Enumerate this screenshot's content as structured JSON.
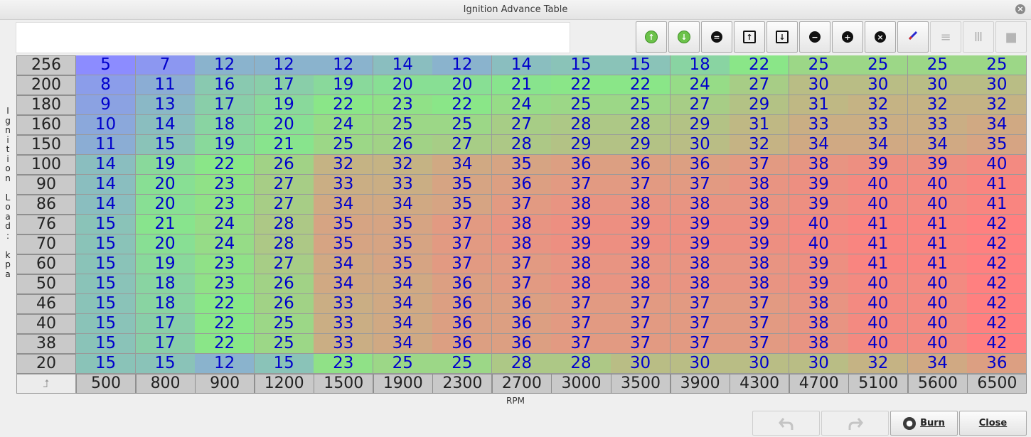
{
  "window": {
    "title": "Ignition Advance Table"
  },
  "toolbar": {
    "buttons": [
      {
        "name": "increase-green-icon",
        "glyph": "↑",
        "kind": "green",
        "enabled": true
      },
      {
        "name": "decrease-green-icon",
        "glyph": "↓",
        "kind": "green",
        "enabled": true
      },
      {
        "name": "set-equal-icon",
        "glyph": "=",
        "kind": "black",
        "enabled": true
      },
      {
        "name": "arrow-up-icon",
        "glyph": "↑",
        "kind": "arrow",
        "enabled": true
      },
      {
        "name": "arrow-down-icon",
        "glyph": "↓",
        "kind": "arrow",
        "enabled": true
      },
      {
        "name": "minus-icon",
        "glyph": "−",
        "kind": "black",
        "enabled": true
      },
      {
        "name": "plus-icon",
        "glyph": "+",
        "kind": "black",
        "enabled": true
      },
      {
        "name": "multiply-icon",
        "glyph": "×",
        "kind": "black",
        "enabled": true
      },
      {
        "name": "pen-icon",
        "glyph": "/",
        "kind": "pen",
        "enabled": true
      },
      {
        "name": "horizontal-smooth-icon",
        "glyph": "≡",
        "kind": "grey",
        "enabled": false
      },
      {
        "name": "vertical-smooth-icon",
        "glyph": "Ⅲ",
        "kind": "grey",
        "enabled": false
      },
      {
        "name": "block-fill-icon",
        "glyph": "■",
        "kind": "grey",
        "enabled": false
      }
    ]
  },
  "table": {
    "y_axis_label": "Ignition Load: kpa",
    "x_axis_label": "RPM",
    "corner_icon": "axis-swap-icon",
    "corner_glyph": "⮥",
    "rpm": [
      "500",
      "800",
      "900",
      "1200",
      "1500",
      "1900",
      "2300",
      "2700",
      "3000",
      "3500",
      "3900",
      "4300",
      "4700",
      "5100",
      "5600",
      "6500"
    ],
    "load": [
      "256",
      "200",
      "180",
      "160",
      "150",
      "100",
      "90",
      "86",
      "76",
      "70",
      "60",
      "50",
      "46",
      "40",
      "38",
      "20"
    ],
    "values": [
      [
        5,
        7,
        12,
        12,
        12,
        14,
        12,
        14,
        15,
        15,
        18,
        22,
        25,
        25,
        25,
        25
      ],
      [
        8,
        11,
        16,
        17,
        19,
        20,
        20,
        21,
        22,
        22,
        24,
        27,
        30,
        30,
        30,
        30
      ],
      [
        9,
        13,
        17,
        19,
        22,
        23,
        22,
        24,
        25,
        25,
        27,
        29,
        31,
        32,
        32,
        32
      ],
      [
        10,
        14,
        18,
        20,
        24,
        25,
        25,
        27,
        28,
        28,
        29,
        31,
        33,
        33,
        33,
        34
      ],
      [
        11,
        15,
        19,
        21,
        25,
        26,
        27,
        28,
        29,
        29,
        30,
        32,
        34,
        34,
        34,
        35
      ],
      [
        14,
        19,
        22,
        26,
        32,
        32,
        34,
        35,
        36,
        36,
        36,
        37,
        38,
        39,
        39,
        40
      ],
      [
        14,
        20,
        23,
        27,
        33,
        33,
        35,
        36,
        37,
        37,
        37,
        38,
        39,
        40,
        40,
        41
      ],
      [
        14,
        20,
        23,
        27,
        34,
        34,
        35,
        37,
        38,
        38,
        38,
        38,
        39,
        40,
        40,
        41
      ],
      [
        15,
        21,
        24,
        28,
        35,
        35,
        37,
        38,
        39,
        39,
        39,
        39,
        40,
        41,
        41,
        42
      ],
      [
        15,
        20,
        24,
        28,
        35,
        35,
        37,
        38,
        39,
        39,
        39,
        39,
        40,
        41,
        41,
        42
      ],
      [
        15,
        19,
        23,
        27,
        34,
        35,
        37,
        37,
        38,
        38,
        38,
        38,
        39,
        41,
        41,
        42
      ],
      [
        15,
        18,
        23,
        26,
        34,
        34,
        36,
        37,
        38,
        38,
        38,
        38,
        39,
        40,
        40,
        42
      ],
      [
        15,
        18,
        22,
        26,
        33,
        34,
        36,
        36,
        37,
        37,
        37,
        37,
        38,
        40,
        40,
        42
      ],
      [
        15,
        17,
        22,
        25,
        33,
        34,
        36,
        36,
        37,
        37,
        37,
        37,
        38,
        40,
        40,
        42
      ],
      [
        15,
        17,
        22,
        25,
        33,
        34,
        36,
        36,
        37,
        37,
        37,
        37,
        38,
        40,
        40,
        42
      ],
      [
        15,
        15,
        12,
        15,
        23,
        25,
        25,
        28,
        28,
        30,
        30,
        30,
        30,
        32,
        34,
        36
      ]
    ],
    "value_min": 5,
    "value_max": 42
  },
  "footer": {
    "undo_icon": "undo-icon",
    "redo_icon": "redo-icon",
    "burn_label": "Burn",
    "close_label": "Close"
  },
  "colors": {
    "low": "#8c8cff",
    "mid": "#88e888",
    "high": "#ff8080",
    "value_text": "#0000cc"
  }
}
